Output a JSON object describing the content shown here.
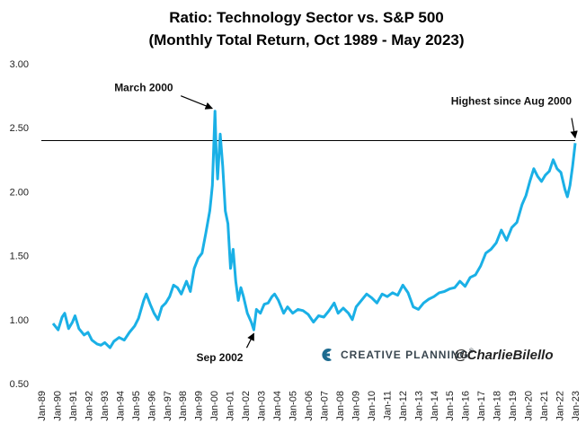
{
  "chart_data": {
    "type": "line",
    "title": "Ratio: Technology Sector vs. S&P 500",
    "subtitle": "(Monthly Total Return, Oct 1989 - May 2023)",
    "ylim": [
      0.5,
      3.0
    ],
    "y_ticks": [
      "0.50",
      "1.00",
      "1.50",
      "2.00",
      "2.50",
      "3.00"
    ],
    "x_ticks": [
      "Jan-89",
      "Jan-90",
      "Jan-91",
      "Jan-92",
      "Jan-93",
      "Jan-94",
      "Jan-95",
      "Jan-96",
      "Jan-97",
      "Jan-98",
      "Jan-99",
      "Jan-00",
      "Jan-01",
      "Jan-02",
      "Jan-03",
      "Jan-04",
      "Jan-05",
      "Jan-06",
      "Jan-07",
      "Jan-08",
      "Jan-09",
      "Jan-10",
      "Jan-11",
      "Jan-12",
      "Jan-13",
      "Jan-14",
      "Jan-15",
      "Jan-16",
      "Jan-17",
      "Jan-18",
      "Jan-19",
      "Jan-20",
      "Jan-21",
      "Jan-22",
      "Jan-23"
    ],
    "x_range": [
      "1989-01",
      "2023-05"
    ],
    "grid": false,
    "reference_line": {
      "value": 2.4
    },
    "series": [
      {
        "color": "#1ab0e6",
        "points": [
          [
            "1989-10",
            0.97
          ],
          [
            "1990-02",
            0.92
          ],
          [
            "1990-05",
            1.02
          ],
          [
            "1990-07",
            1.05
          ],
          [
            "1990-10",
            0.93
          ],
          [
            "1991-01",
            0.98
          ],
          [
            "1991-03",
            1.03
          ],
          [
            "1991-06",
            0.93
          ],
          [
            "1991-10",
            0.88
          ],
          [
            "1992-01",
            0.9
          ],
          [
            "1992-04",
            0.84
          ],
          [
            "1992-08",
            0.81
          ],
          [
            "1992-11",
            0.8
          ],
          [
            "1993-02",
            0.82
          ],
          [
            "1993-06",
            0.78
          ],
          [
            "1993-09",
            0.83
          ],
          [
            "1994-01",
            0.86
          ],
          [
            "1994-05",
            0.84
          ],
          [
            "1994-09",
            0.9
          ],
          [
            "1995-01",
            0.95
          ],
          [
            "1995-04",
            1.01
          ],
          [
            "1995-08",
            1.15
          ],
          [
            "1995-10",
            1.2
          ],
          [
            "1996-01",
            1.12
          ],
          [
            "1996-04",
            1.05
          ],
          [
            "1996-07",
            1.0
          ],
          [
            "1996-10",
            1.1
          ],
          [
            "1997-01",
            1.13
          ],
          [
            "1997-04",
            1.18
          ],
          [
            "1997-07",
            1.27
          ],
          [
            "1997-10",
            1.25
          ],
          [
            "1998-01",
            1.2
          ],
          [
            "1998-05",
            1.3
          ],
          [
            "1998-08",
            1.22
          ],
          [
            "1998-11",
            1.4
          ],
          [
            "1999-02",
            1.48
          ],
          [
            "1999-05",
            1.52
          ],
          [
            "1999-08",
            1.68
          ],
          [
            "1999-11",
            1.85
          ],
          [
            "1999-12",
            1.95
          ],
          [
            "2000-01",
            2.05
          ],
          [
            "2000-03",
            2.63
          ],
          [
            "2000-04",
            2.3
          ],
          [
            "2000-05",
            2.1
          ],
          [
            "2000-07",
            2.45
          ],
          [
            "2000-09",
            2.2
          ],
          [
            "2000-11",
            1.85
          ],
          [
            "2001-01",
            1.75
          ],
          [
            "2001-03",
            1.4
          ],
          [
            "2001-05",
            1.55
          ],
          [
            "2001-07",
            1.3
          ],
          [
            "2001-09",
            1.15
          ],
          [
            "2001-11",
            1.25
          ],
          [
            "2002-01",
            1.18
          ],
          [
            "2002-04",
            1.05
          ],
          [
            "2002-07",
            0.98
          ],
          [
            "2002-09",
            0.92
          ],
          [
            "2002-11",
            1.08
          ],
          [
            "2003-02",
            1.05
          ],
          [
            "2003-05",
            1.12
          ],
          [
            "2003-08",
            1.13
          ],
          [
            "2003-11",
            1.18
          ],
          [
            "2004-01",
            1.2
          ],
          [
            "2004-04",
            1.15
          ],
          [
            "2004-08",
            1.05
          ],
          [
            "2004-11",
            1.1
          ],
          [
            "2005-03",
            1.05
          ],
          [
            "2005-07",
            1.08
          ],
          [
            "2005-11",
            1.07
          ],
          [
            "2006-03",
            1.04
          ],
          [
            "2006-07",
            0.98
          ],
          [
            "2006-11",
            1.03
          ],
          [
            "2007-03",
            1.02
          ],
          [
            "2007-07",
            1.07
          ],
          [
            "2007-11",
            1.13
          ],
          [
            "2008-02",
            1.05
          ],
          [
            "2008-06",
            1.09
          ],
          [
            "2008-10",
            1.05
          ],
          [
            "2009-01",
            1.0
          ],
          [
            "2009-04",
            1.1
          ],
          [
            "2009-08",
            1.15
          ],
          [
            "2009-12",
            1.2
          ],
          [
            "2010-04",
            1.17
          ],
          [
            "2010-08",
            1.13
          ],
          [
            "2010-12",
            1.2
          ],
          [
            "2011-04",
            1.18
          ],
          [
            "2011-08",
            1.21
          ],
          [
            "2011-12",
            1.19
          ],
          [
            "2012-04",
            1.27
          ],
          [
            "2012-08",
            1.21
          ],
          [
            "2012-12",
            1.1
          ],
          [
            "2013-04",
            1.08
          ],
          [
            "2013-08",
            1.13
          ],
          [
            "2013-12",
            1.16
          ],
          [
            "2014-04",
            1.18
          ],
          [
            "2014-08",
            1.21
          ],
          [
            "2014-12",
            1.22
          ],
          [
            "2015-04",
            1.24
          ],
          [
            "2015-08",
            1.25
          ],
          [
            "2015-12",
            1.3
          ],
          [
            "2016-04",
            1.26
          ],
          [
            "2016-08",
            1.33
          ],
          [
            "2016-12",
            1.35
          ],
          [
            "2017-04",
            1.42
          ],
          [
            "2017-08",
            1.52
          ],
          [
            "2017-12",
            1.55
          ],
          [
            "2018-04",
            1.6
          ],
          [
            "2018-08",
            1.7
          ],
          [
            "2018-12",
            1.62
          ],
          [
            "2019-04",
            1.72
          ],
          [
            "2019-08",
            1.76
          ],
          [
            "2019-12",
            1.9
          ],
          [
            "2020-03",
            1.97
          ],
          [
            "2020-06",
            2.08
          ],
          [
            "2020-09",
            2.18
          ],
          [
            "2020-12",
            2.12
          ],
          [
            "2021-03",
            2.08
          ],
          [
            "2021-06",
            2.13
          ],
          [
            "2021-09",
            2.16
          ],
          [
            "2021-12",
            2.25
          ],
          [
            "2022-03",
            2.18
          ],
          [
            "2022-06",
            2.15
          ],
          [
            "2022-09",
            2.02
          ],
          [
            "2022-11",
            1.96
          ],
          [
            "2023-01",
            2.05
          ],
          [
            "2023-03",
            2.2
          ],
          [
            "2023-05",
            2.38
          ]
        ]
      }
    ],
    "annotations": [
      {
        "text": "March 2000",
        "date": "2000-03",
        "value": 2.63
      },
      {
        "text": "Sep 2002",
        "date": "2002-09",
        "value": 0.92
      },
      {
        "text": "Highest since Aug 2000",
        "date": "2023-05",
        "value": 2.4
      }
    ]
  },
  "branding": {
    "company": "CREATIVE PLANNING",
    "registered": "®",
    "handle": "@CharlieBilello"
  }
}
